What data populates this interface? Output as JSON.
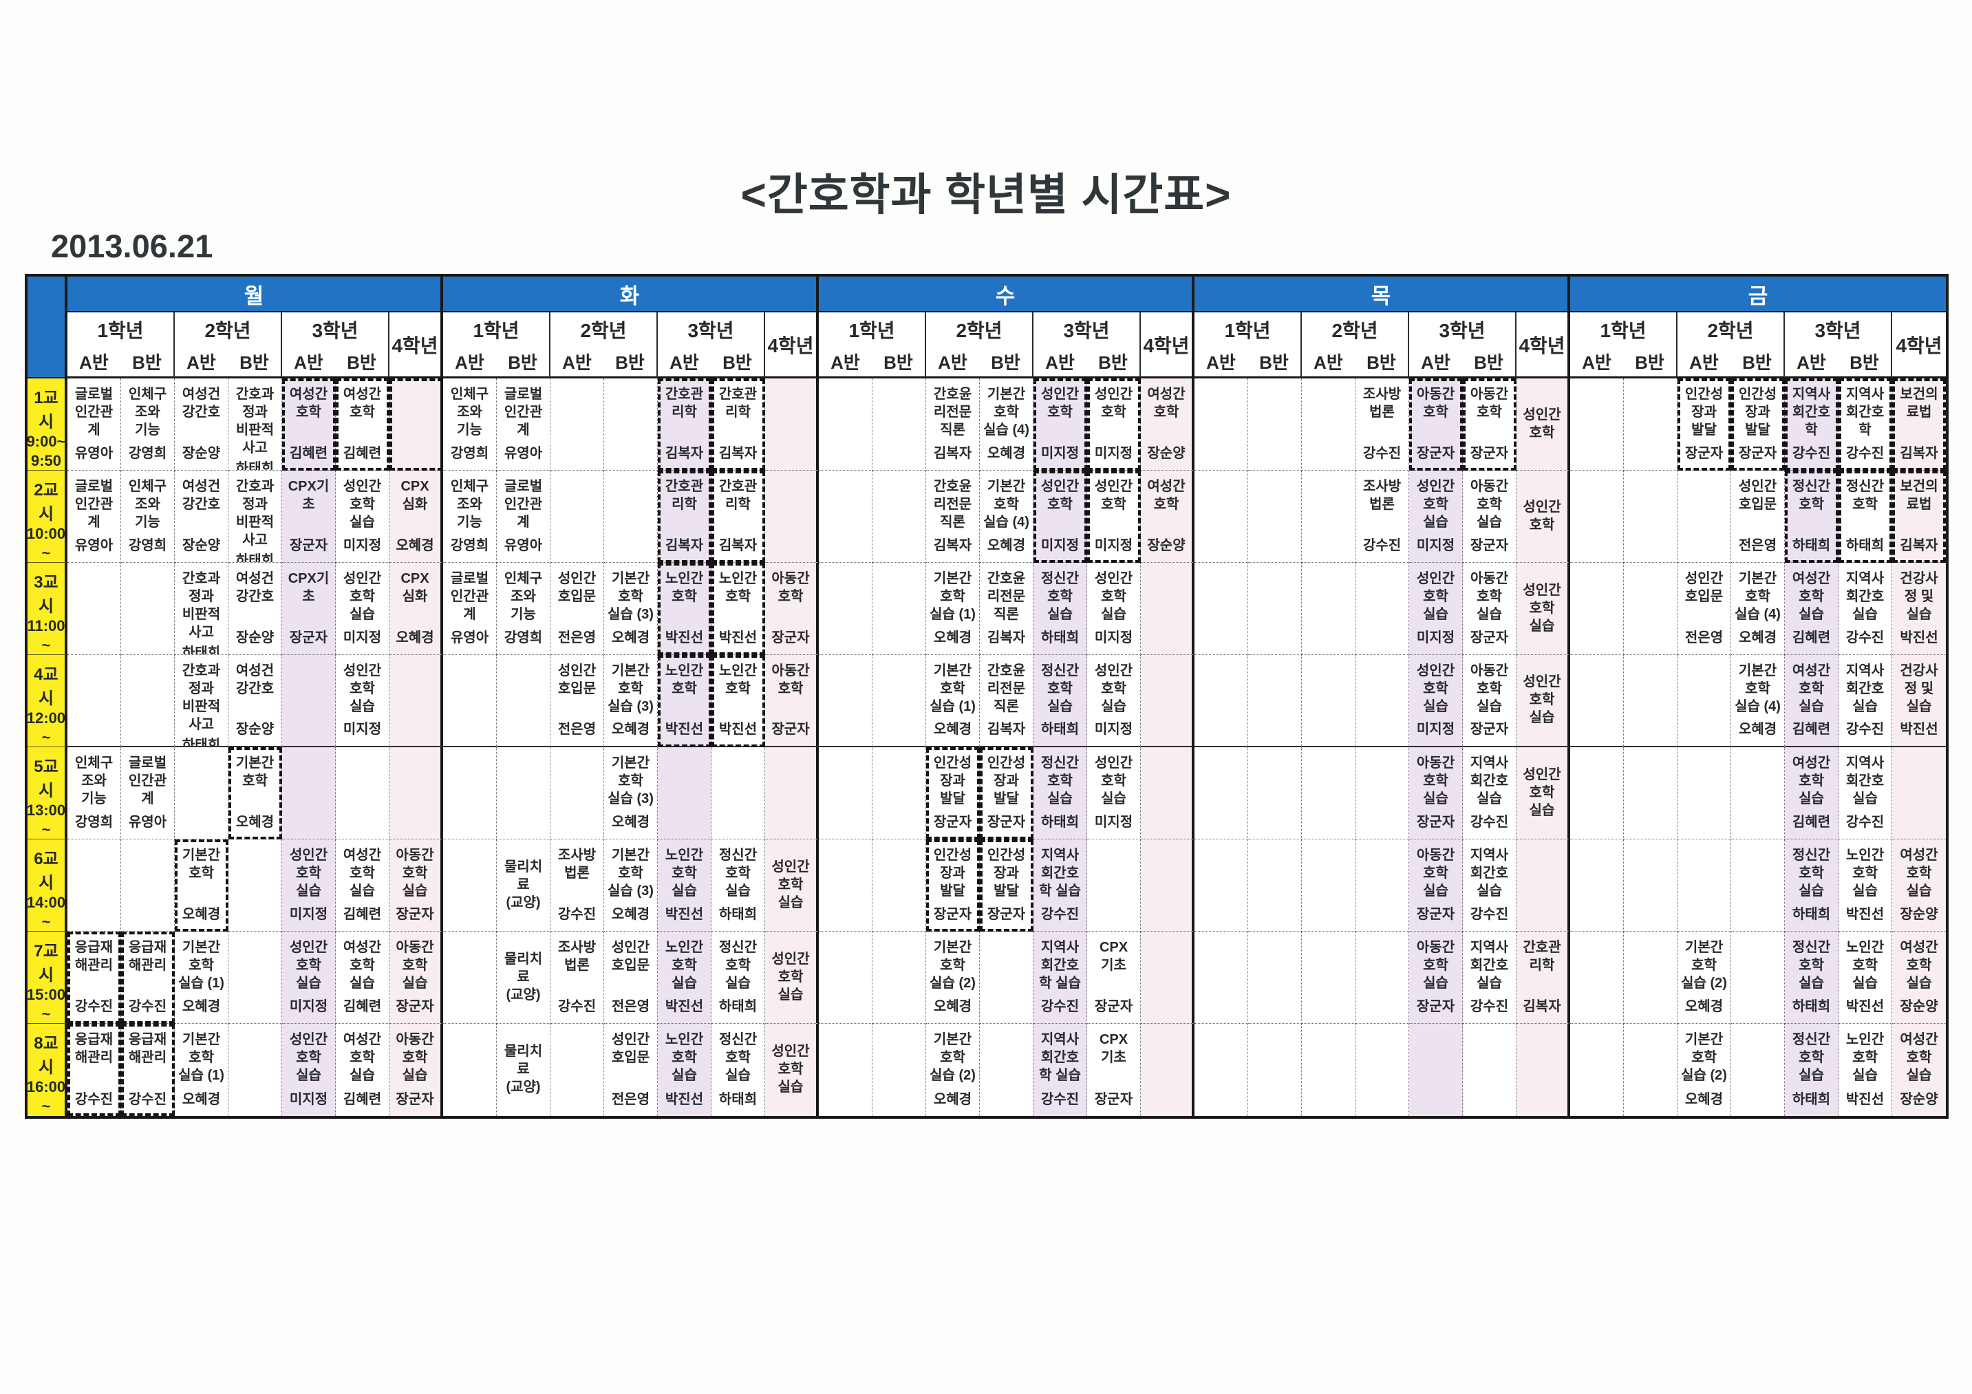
{
  "title": "<간호학과 학년별 시간표>",
  "date": "2013.06.21",
  "colors": {
    "day_band": "#2273c3",
    "time_column": "#fdee21",
    "grade3_a_column": "#ece2f0",
    "grade4_column": "#f8edef",
    "highlight_dash": "#141414"
  },
  "grades": [
    {
      "label": "1학년",
      "classes": [
        "A반",
        "B반"
      ]
    },
    {
      "label": "2학년",
      "classes": [
        "A반",
        "B반"
      ]
    },
    {
      "label": "3학년",
      "classes": [
        "A반",
        "B반"
      ]
    },
    {
      "label": "4학년",
      "classes": []
    }
  ],
  "column_ids": [
    "1A",
    "1B",
    "2A",
    "2B",
    "3A",
    "3B",
    "4"
  ],
  "periods": [
    {
      "label": "1교시",
      "times": [
        "9:00~",
        "9:50"
      ]
    },
    {
      "label": "2교시",
      "times": [
        "10:00",
        "~",
        "10:50"
      ]
    },
    {
      "label": "3교시",
      "times": [
        "11:00",
        "~",
        "11:50"
      ]
    },
    {
      "label": "4교시",
      "times": [
        "12:00",
        "~",
        "12:50"
      ]
    },
    {
      "label": "5교시",
      "times": [
        "13:00",
        "~",
        "13:50"
      ]
    },
    {
      "label": "6교시",
      "times": [
        "14:00",
        "~",
        "14:50"
      ]
    },
    {
      "label": "7교시",
      "times": [
        "15:00",
        "~",
        "15:50"
      ]
    },
    {
      "label": "8교시",
      "times": [
        "16:00",
        "~",
        "16:50"
      ]
    }
  ],
  "days": [
    {
      "id": "mon",
      "label": "월",
      "rows": [
        [
          {
            "c": "글로벌 인간관계",
            "t": "유영아"
          },
          {
            "c": "인체구조와 기능",
            "t": "강영희"
          },
          {
            "c": "여성건강간호",
            "t": "장순양"
          },
          {
            "c": "간호과정과 비판적 사고",
            "t": "하태희"
          },
          {
            "c": "여성간호학",
            "t": "김혜련",
            "d": 1
          },
          {
            "c": "여성간호학",
            "t": "김혜련",
            "d": 1
          },
          {
            "d": 1
          }
        ],
        [
          {
            "c": "글로벌 인간관계",
            "t": "유영아"
          },
          {
            "c": "인체구조와 기능",
            "t": "강영희"
          },
          {
            "c": "여성건강간호",
            "t": "장순양"
          },
          {
            "c": "간호과정과 비판적 사고",
            "t": "하태희"
          },
          {
            "c": "CPX기초",
            "t": "장군자"
          },
          {
            "c": "성인간호학 실습",
            "t": "미지정"
          },
          {
            "c": "CPX 심화",
            "t": "오혜경"
          }
        ],
        [
          null,
          null,
          {
            "c": "간호과정과 비판적 사고",
            "t": "하태희"
          },
          {
            "c": "여성건강간호",
            "t": "장순양"
          },
          {
            "c": "CPX기초",
            "t": "장군자"
          },
          {
            "c": "성인간호학 실습",
            "t": "미지정"
          },
          {
            "c": "CPX 심화",
            "t": "오혜경"
          }
        ],
        [
          null,
          null,
          {
            "c": "간호과정과 비판적 사고",
            "t": "하태희"
          },
          {
            "c": "여성건강간호",
            "t": "장순양"
          },
          null,
          {
            "c": "성인간호학 실습",
            "t": "미지정"
          },
          null
        ],
        [
          {
            "c": "인체구조와 기능",
            "t": "강영희"
          },
          {
            "c": "글로벌 인간관계",
            "t": "유영아"
          },
          null,
          {
            "c": "기본간호학",
            "t": "오혜경",
            "d": 1
          },
          null,
          null,
          null
        ],
        [
          null,
          null,
          {
            "c": "기본간호학",
            "t": "오혜경",
            "d": 1
          },
          null,
          {
            "c": "성인간호학 실습",
            "t": "미지정"
          },
          {
            "c": "여성간호학 실습",
            "t": "김혜련"
          },
          {
            "c": "아동간호학 실습",
            "t": "장군자"
          }
        ],
        [
          {
            "c": "응급재해관리",
            "t": "강수진",
            "d": 1
          },
          {
            "c": "응급재해관리",
            "t": "강수진",
            "d": 1
          },
          {
            "c": "기본간호학 실습 (1)",
            "t": "오혜경"
          },
          null,
          {
            "c": "성인간호학 실습",
            "t": "미지정"
          },
          {
            "c": "여성간호학 실습",
            "t": "김혜련"
          },
          {
            "c": "아동간호학 실습",
            "t": "장군자"
          }
        ],
        [
          {
            "c": "응급재해관리",
            "t": "강수진",
            "d": 1
          },
          {
            "c": "응급재해관리",
            "t": "강수진",
            "d": 1
          },
          {
            "c": "기본간호학 실습 (1)",
            "t": "오혜경"
          },
          null,
          {
            "c": "성인간호학 실습",
            "t": "미지정"
          },
          {
            "c": "여성간호학 실습",
            "t": "김혜련"
          },
          {
            "c": "아동간호학 실습",
            "t": "장군자"
          }
        ]
      ]
    },
    {
      "id": "tue",
      "label": "화",
      "rows": [
        [
          {
            "c": "인체구조와 기능",
            "t": "강영희"
          },
          {
            "c": "글로벌 인간관계",
            "t": "유영아"
          },
          null,
          null,
          {
            "c": "간호관리학",
            "t": "김복자",
            "d": 1
          },
          {
            "c": "간호관리학",
            "t": "김복자",
            "d": 1
          },
          null
        ],
        [
          {
            "c": "인체구조와 기능",
            "t": "강영희"
          },
          {
            "c": "글로벌 인간관계",
            "t": "유영아"
          },
          null,
          null,
          {
            "c": "간호관리학",
            "t": "김복자",
            "d": 1
          },
          {
            "c": "간호관리학",
            "t": "김복자",
            "d": 1
          },
          null
        ],
        [
          {
            "c": "글로벌 인간관계",
            "t": "유영아"
          },
          {
            "c": "인체구조와 기능",
            "t": "강영희"
          },
          {
            "c": "성인간호입문",
            "t": "전은영"
          },
          {
            "c": "기본간호학 실습 (3)",
            "t": "오혜경"
          },
          {
            "c": "노인간호학",
            "t": "박진선",
            "d": 1
          },
          {
            "c": "노인간호학",
            "t": "박진선",
            "d": 1
          },
          {
            "c": "아동간호학",
            "t": "장군자"
          }
        ],
        [
          null,
          null,
          {
            "c": "성인간호입문",
            "t": "전은영"
          },
          {
            "c": "기본간호학 실습 (3)",
            "t": "오혜경"
          },
          {
            "c": "노인간호학",
            "t": "박진선",
            "d": 1
          },
          {
            "c": "노인간호학",
            "t": "박진선",
            "d": 1
          },
          {
            "c": "아동간호학",
            "t": "장군자"
          }
        ],
        [
          null,
          null,
          null,
          {
            "c": "기본간호학 실습 (3)",
            "t": "오혜경"
          },
          null,
          null,
          null
        ],
        [
          null,
          {
            "c": "물리치료 (교양)",
            "t": ""
          },
          {
            "c": "조사방법론",
            "t": "강수진"
          },
          {
            "c": "기본간호학 실습 (3)",
            "t": "오혜경"
          },
          {
            "c": "노인간호학 실습",
            "t": "박진선"
          },
          {
            "c": "정신간호학 실습",
            "t": "하태희"
          },
          {
            "c": "성인간호학 실습",
            "t": ""
          }
        ],
        [
          null,
          {
            "c": "물리치료 (교양)",
            "t": ""
          },
          {
            "c": "조사방법론",
            "t": "강수진"
          },
          {
            "c": "성인간호입문",
            "t": "전은영"
          },
          {
            "c": "노인간호학 실습",
            "t": "박진선"
          },
          {
            "c": "정신간호학 실습",
            "t": "하태희"
          },
          {
            "c": "성인간호학 실습",
            "t": ""
          }
        ],
        [
          null,
          {
            "c": "물리치료 (교양)",
            "t": ""
          },
          null,
          {
            "c": "성인간호입문",
            "t": "전은영"
          },
          {
            "c": "노인간호학 실습",
            "t": "박진선"
          },
          {
            "c": "정신간호학 실습",
            "t": "하태희"
          },
          {
            "c": "성인간호학 실습",
            "t": ""
          }
        ]
      ]
    },
    {
      "id": "wed",
      "label": "수",
      "rows": [
        [
          null,
          null,
          {
            "c": "간호윤리전문직론",
            "t": "김복자"
          },
          {
            "c": "기본간호학 실습 (4)",
            "t": "오혜경"
          },
          {
            "c": "성인간호학",
            "t": "미지정",
            "d": 1
          },
          {
            "c": "성인간호학",
            "t": "미지정",
            "d": 1
          },
          {
            "c": "여성간호학",
            "t": "장순양"
          }
        ],
        [
          null,
          null,
          {
            "c": "간호윤리전문직론",
            "t": "김복자"
          },
          {
            "c": "기본간호학 실습 (4)",
            "t": "오혜경"
          },
          {
            "c": "성인간호학",
            "t": "미지정",
            "d": 1
          },
          {
            "c": "성인간호학",
            "t": "미지정",
            "d": 1
          },
          {
            "c": "여성간호학",
            "t": "장순양"
          }
        ],
        [
          null,
          null,
          {
            "c": "기본간호학 실습 (1)",
            "t": "오혜경"
          },
          {
            "c": "간호윤리전문직론",
            "t": "김복자"
          },
          {
            "c": "정신간호학 실습",
            "t": "하태희"
          },
          {
            "c": "성인간호학 실습",
            "t": "미지정"
          },
          null
        ],
        [
          null,
          null,
          {
            "c": "기본간호학 실습 (1)",
            "t": "오혜경"
          },
          {
            "c": "간호윤리전문직론",
            "t": "김복자"
          },
          {
            "c": "정신간호학 실습",
            "t": "하태희"
          },
          {
            "c": "성인간호학 실습",
            "t": "미지정"
          },
          null
        ],
        [
          null,
          null,
          {
            "c": "인간성장과 발달",
            "t": "장군자",
            "d": 1
          },
          {
            "c": "인간성장과 발달",
            "t": "장군자",
            "d": 1
          },
          {
            "c": "정신간호학 실습",
            "t": "하태희"
          },
          {
            "c": "성인간호학 실습",
            "t": "미지정"
          },
          null
        ],
        [
          null,
          null,
          {
            "c": "인간성장과 발달",
            "t": "장군자",
            "d": 1
          },
          {
            "c": "인간성장과 발달",
            "t": "장군자",
            "d": 1
          },
          {
            "c": "지역사회간호학 실습",
            "t": "강수진"
          },
          null,
          null
        ],
        [
          null,
          null,
          {
            "c": "기본간호학 실습 (2)",
            "t": "오혜경"
          },
          null,
          {
            "c": "지역사회간호학 실습",
            "t": "강수진"
          },
          {
            "c": "CPX 기초",
            "t": "장군자"
          },
          null
        ],
        [
          null,
          null,
          {
            "c": "기본간호학 실습 (2)",
            "t": "오혜경"
          },
          null,
          {
            "c": "지역사회간호학 실습",
            "t": "강수진"
          },
          {
            "c": "CPX 기초",
            "t": "장군자"
          },
          null
        ]
      ]
    },
    {
      "id": "thu",
      "label": "목",
      "rows": [
        [
          null,
          null,
          null,
          {
            "c": "조사방법론",
            "t": "강수진"
          },
          {
            "c": "아동간호학",
            "t": "장군자",
            "d": 1
          },
          {
            "c": "아동간호학",
            "t": "장군자",
            "d": 1
          },
          {
            "c": "성인간호학",
            "t": ""
          }
        ],
        [
          null,
          null,
          null,
          {
            "c": "조사방법론",
            "t": "강수진"
          },
          {
            "c": "성인간호학 실습",
            "t": "미지정"
          },
          {
            "c": "아동간호학 실습",
            "t": "장군자"
          },
          {
            "c": "성인간호학",
            "t": ""
          }
        ],
        [
          null,
          null,
          null,
          null,
          {
            "c": "성인간호학 실습",
            "t": "미지정"
          },
          {
            "c": "아동간호학 실습",
            "t": "장군자"
          },
          {
            "c": "성인간호학 실습",
            "t": ""
          }
        ],
        [
          null,
          null,
          null,
          null,
          {
            "c": "성인간호학 실습",
            "t": "미지정"
          },
          {
            "c": "아동간호학 실습",
            "t": "장군자"
          },
          {
            "c": "성인간호학 실습",
            "t": ""
          }
        ],
        [
          null,
          null,
          null,
          null,
          {
            "c": "아동간호학 실습",
            "t": "장군자"
          },
          {
            "c": "지역사회간호 실습",
            "t": "강수진"
          },
          {
            "c": "성인간호학 실습",
            "t": ""
          }
        ],
        [
          null,
          null,
          null,
          null,
          {
            "c": "아동간호학 실습",
            "t": "장군자"
          },
          {
            "c": "지역사회간호 실습",
            "t": "강수진"
          },
          null
        ],
        [
          null,
          null,
          null,
          null,
          {
            "c": "아동간호학 실습",
            "t": "장군자"
          },
          {
            "c": "지역사회간호 실습",
            "t": "강수진"
          },
          {
            "c": "간호관리학",
            "t": "김복자"
          }
        ],
        [
          null,
          null,
          null,
          null,
          null,
          null,
          null
        ]
      ]
    },
    {
      "id": "fri",
      "label": "금",
      "rows": [
        [
          null,
          null,
          {
            "c": "인간성장과 발달",
            "t": "장군자",
            "d": 1
          },
          {
            "c": "인간성장과 발달",
            "t": "장군자",
            "d": 1
          },
          {
            "c": "지역사회간호학",
            "t": "강수진",
            "d": 1
          },
          {
            "c": "지역사회간호학",
            "t": "강수진",
            "d": 1
          },
          {
            "c": "보건의료법",
            "t": "김복자",
            "d": 1
          }
        ],
        [
          null,
          null,
          null,
          {
            "c": "성인간호입문",
            "t": "전은영"
          },
          {
            "c": "정신간호학",
            "t": "하태희",
            "d": 1
          },
          {
            "c": "정신간호학",
            "t": "하태희",
            "d": 1
          },
          {
            "c": "보건의료법",
            "t": "김복자",
            "d": 1
          }
        ],
        [
          null,
          null,
          {
            "c": "성인간호입문",
            "t": "전은영"
          },
          {
            "c": "기본간호학 실습 (4)",
            "t": "오혜경"
          },
          {
            "c": "여성간호학 실습",
            "t": "김혜련"
          },
          {
            "c": "지역사회간호 실습",
            "t": "강수진"
          },
          {
            "c": "건강사정 및 실습",
            "t": "박진선"
          }
        ],
        [
          null,
          null,
          null,
          {
            "c": "기본간호학 실습 (4)",
            "t": "오혜경"
          },
          {
            "c": "여성간호학 실습",
            "t": "김혜련"
          },
          {
            "c": "지역사회간호 실습",
            "t": "강수진"
          },
          {
            "c": "건강사정 및 실습",
            "t": "박진선"
          }
        ],
        [
          null,
          null,
          null,
          null,
          {
            "c": "여성간호학 실습",
            "t": "김혜련"
          },
          {
            "c": "지역사회간호 실습",
            "t": "강수진"
          },
          null
        ],
        [
          null,
          null,
          null,
          null,
          {
            "c": "정신간호학 실습",
            "t": "하태희"
          },
          {
            "c": "노인간호학 실습",
            "t": "박진선"
          },
          {
            "c": "여성간호학 실습",
            "t": "장순양"
          }
        ],
        [
          null,
          null,
          {
            "c": "기본간호학 실습 (2)",
            "t": "오혜경"
          },
          null,
          {
            "c": "정신간호학 실습",
            "t": "하태희"
          },
          {
            "c": "노인간호학 실습",
            "t": "박진선"
          },
          {
            "c": "여성간호학 실습",
            "t": "장순양"
          }
        ],
        [
          null,
          null,
          {
            "c": "기본간호학 실습 (2)",
            "t": "오혜경"
          },
          null,
          {
            "c": "정신간호학 실습",
            "t": "하태희"
          },
          {
            "c": "노인간호학 실습",
            "t": "박진선"
          },
          {
            "c": "여성간호학 실습",
            "t": "장순양"
          }
        ]
      ]
    }
  ]
}
